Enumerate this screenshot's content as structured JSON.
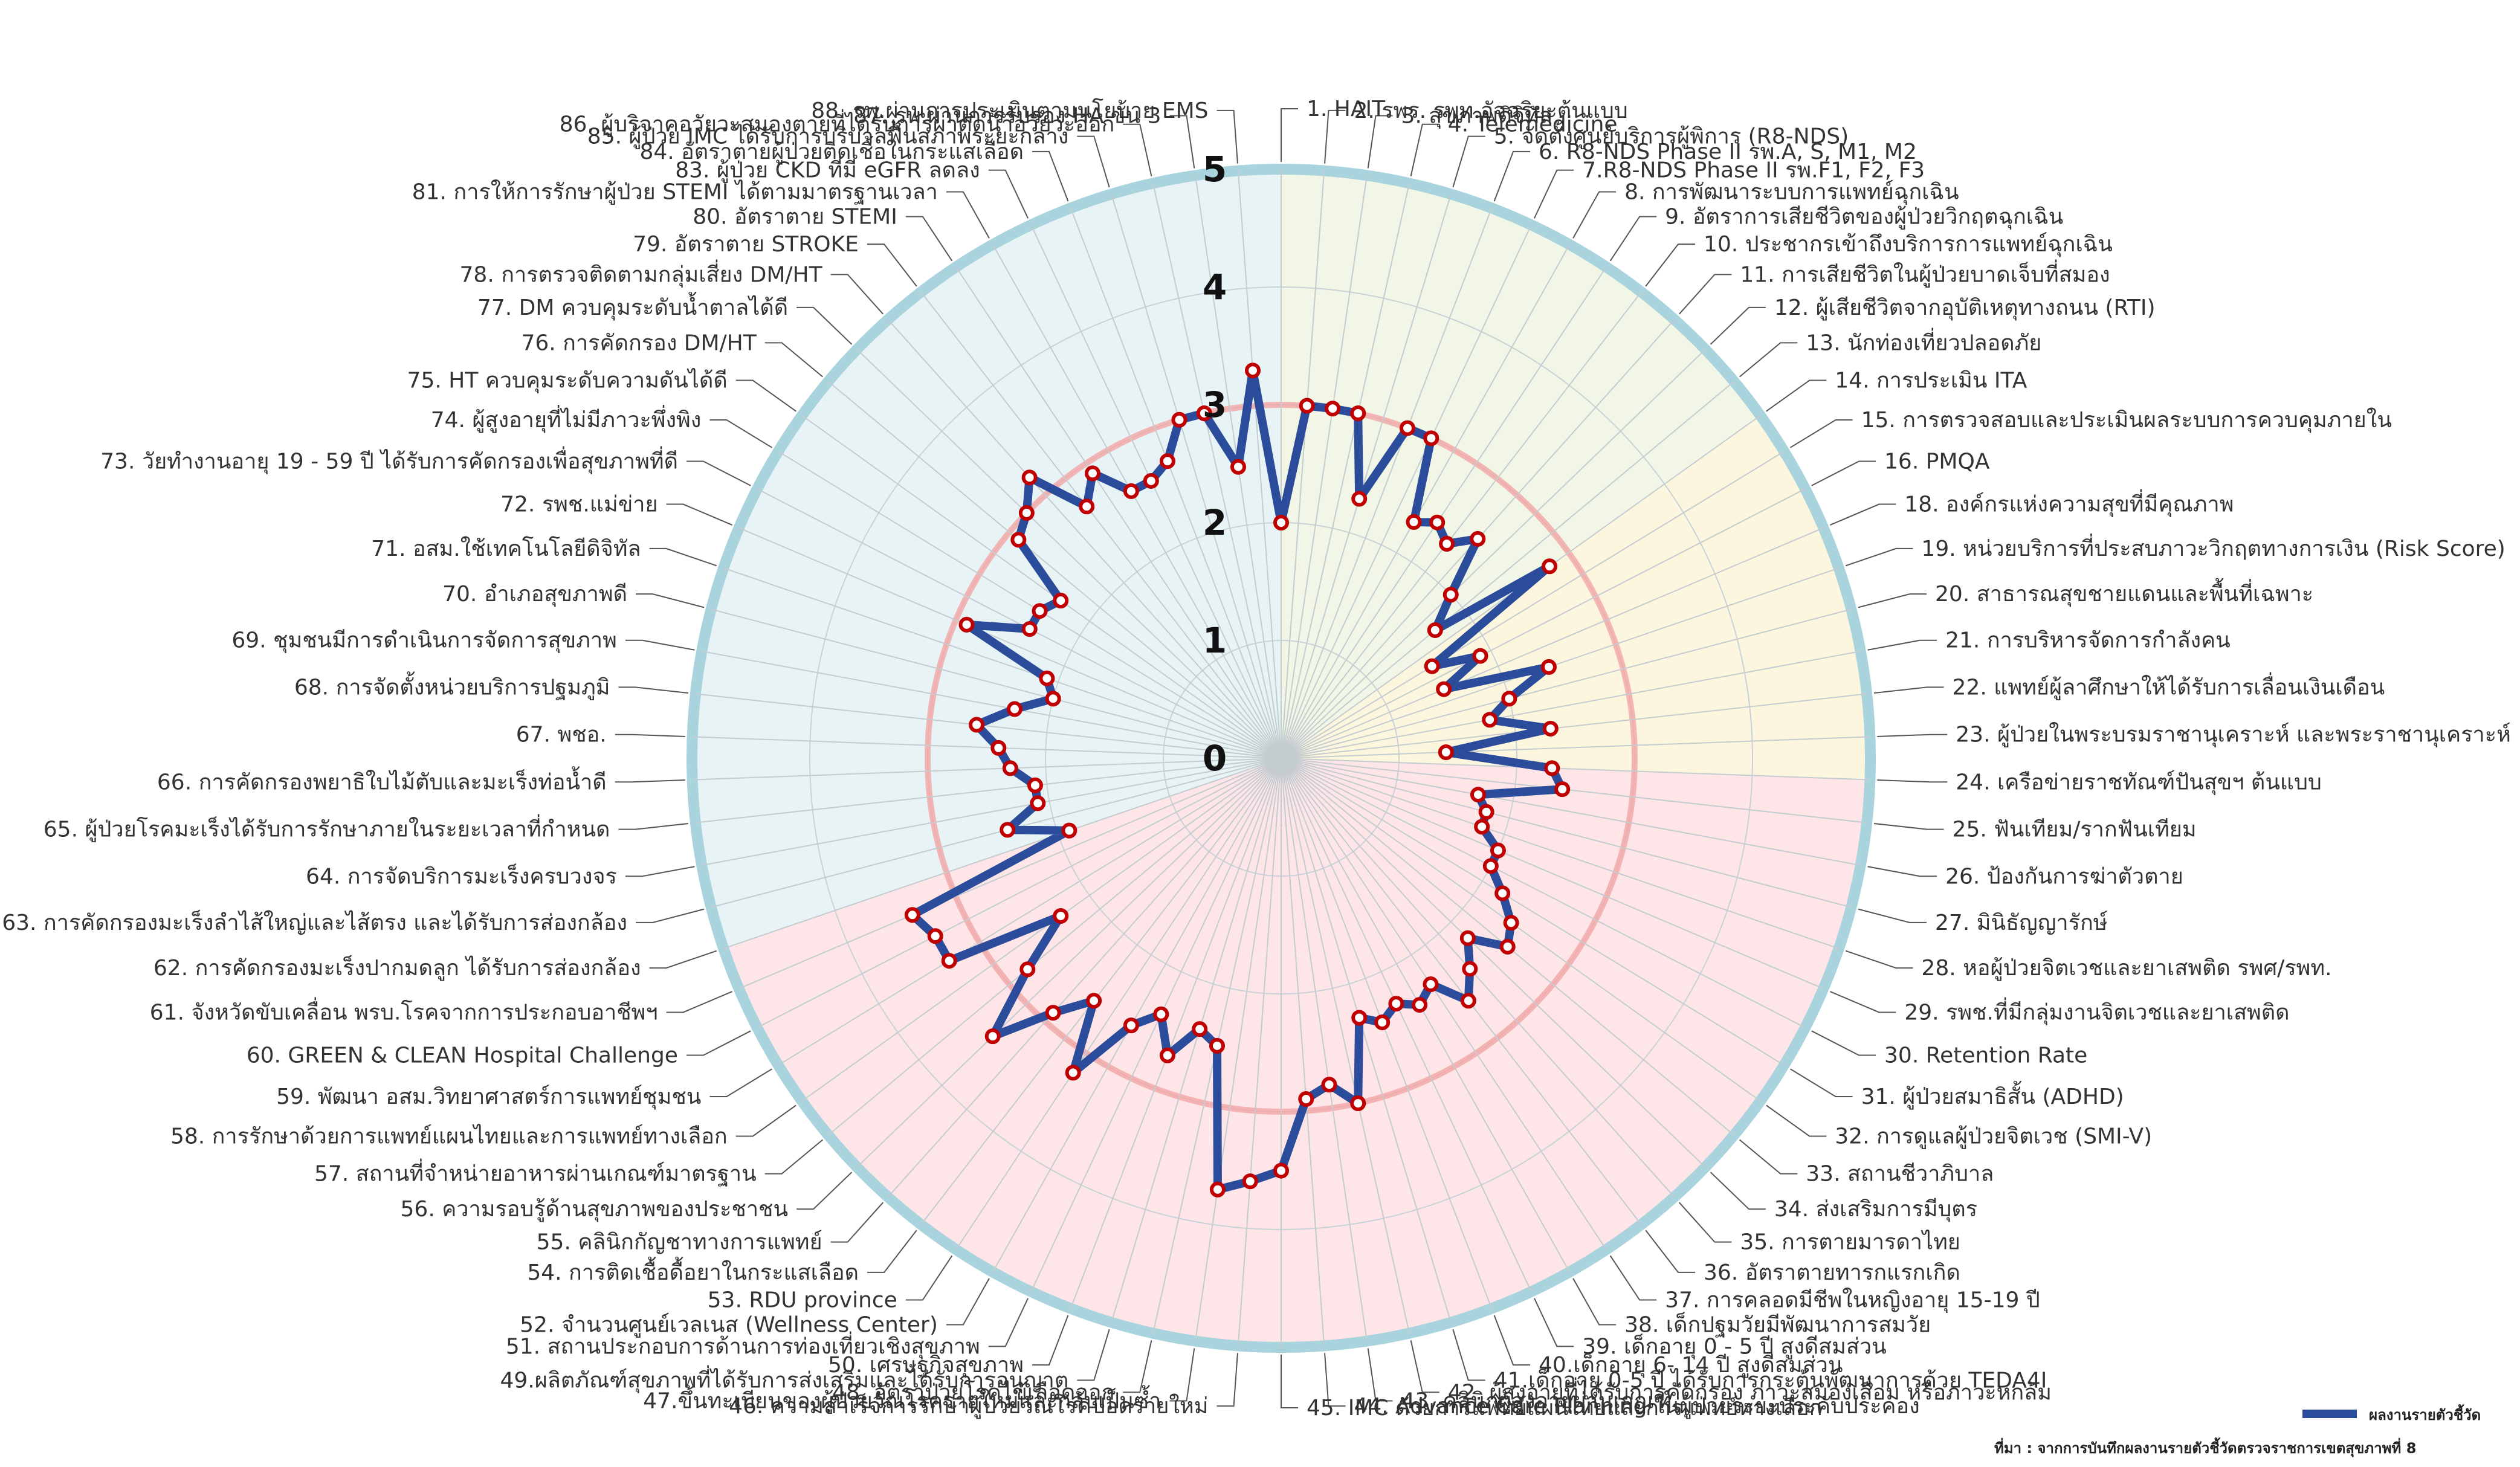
{
  "chart_data": {
    "type": "radar",
    "title": "",
    "rmax": 5,
    "r_ticks": [
      "0",
      "1",
      "2",
      "3",
      "4",
      "5"
    ],
    "reference_level": 3,
    "categories": [
      "1. HAIT",
      "2. รพร. รพท.อัจฉริยะต้นแบบ",
      "3. สุขภาพดิจิทัล",
      "4. Telemedicine",
      "5. จัดตั้งศูนย์บริการผู้พิการ (R8-NDS)",
      "6. R8-NDS Phase II รพ.A, S, M1, M2",
      "7.R8-NDS Phase II รพ.F1, F2, F3",
      "8. การพัฒนาระบบการแพทย์ฉุกเฉิน",
      "9. อัตราการเสียชีวิตของผู้ป่วยวิกฤตฉุกเฉิน",
      "10. ประชากรเข้าถึงบริการการแพทย์ฉุกเฉิน",
      "11. การเสียชีวิตในผู้ป่วยบาดเจ็บที่สมอง",
      "12. ผู้เสียชีวิตจากอุบัติเหตุทางถนน (RTI)",
      "13. นักท่องเที่ยวปลอดภัย",
      "14. การประเมิน ITA",
      "15. การตรวจสอบและประเมินผลระบบการควบคุมภายใน",
      "16. PMQA",
      "18. องค์กรแห่งความสุขที่มีคุณภาพ",
      "19. หน่วยบริการที่ประสบภาวะวิกฤตทางการเงิน (Risk Score)",
      "20. สาธารณสุขชายแดนและพื้นที่เฉพาะ",
      "21. การบริหารจัดการกำลังคน",
      "22. แพทย์ผู้ลาศึกษาให้ได้รับการเลื่อนเงินเดือน",
      "23. ผู้ป่วยในพระบรมราชานุเคราะห์ และพระราชานุเคราะห์",
      "24. เครือข่ายราชทัณฑ์ปันสุขฯ ต้นแบบ",
      "25. ฟันเทียม/รากฟันเทียม",
      "26. ป้องกันการฆ่าตัวตาย",
      "27. มินิธัญญารักษ์",
      "28. หอผู้ป่วยจิตเวชและยาเสพติด รพศ/รพท.",
      "29. รพช.ที่มีกลุ่มงานจิตเวชและยาเสพติด",
      "30. Retention Rate",
      "31. ผู้ป่วยสมาธิสั้น (ADHD)",
      "32. การดูแลผู้ป่วยจิตเวช (SMI-V)",
      "33. สถานชีวาภิบาล",
      "34. ส่งเสริมการมีบุตร",
      "35. การตายมารดาไทย",
      "36. อัตราตายทารกแรกเกิด",
      "37. การคลอดมีชีพในหญิงอายุ 15-19 ปี",
      "38. เด็กปฐมวัยมีพัฒนาการสมวัย",
      "39. เด็กอายุ 0 - 5 ปี สูงดีสมส่วน",
      "40.เด็กอายุ 6- 14 ปี สูงดีสมส่วน",
      "41.เด็กอายุ 0-5 ปี ได้รับการกระตุ้นพัฒนาการด้วย TEDA4I",
      "42. ผู้สูงอายุที่ได้รับการคัดกรอง ภาวะสมองเสื่อม หรือภาวะหกล้ม",
      "43. คลินิกผู้สูงอายุผ่านเกณฑ์",
      "44. Advance Care Planning ในผู้ป่วยระยะประคับประคอง",
      "45. IMC ด้วยการแพทย์แผนไทยและการแพทย์ทางเลือก",
      "46. ความสำเร็จการรักษาผู้ป่วยวัณโรคปอดรายใหม่",
      "47.ขึ้นทะเบียนของผู้ป่วยวัณโรครายใหม่และกลับเป็นซ้ำ",
      "48. อัตราป่วยโรคไข้เลือดออก",
      "49.ผลิตภัณฑ์สุขภาพที่ได้รับการส่งเสริมและได้รับการอนุญาต",
      "50. เศรษฐกิจสุขภาพ",
      "51. สถานประกอบการด้านการท่องเที่ยวเชิงสุขภาพ",
      "52. จำนวนศูนย์เวลเนส (Wellness Center)",
      "53. RDU province",
      "54. การติดเชื้อดื้อยาในกระแสเลือด",
      "55. คลินิกกัญชาทางการแพทย์",
      "56. ความรอบรู้ด้านสุขภาพของประชาชน",
      "57. สถานที่จำหน่ายอาหารผ่านเกณฑ์มาตรฐาน",
      "58. การรักษาด้วยการแพทย์แผนไทยและการแพทย์ทางเลือก",
      "59. พัฒนา อสม.วิทยาศาสตร์การแพทย์ชุมชน",
      "60. GREEN & CLEAN Hospital Challenge",
      "61. จังหวัดขับเคลื่อน พรบ.โรคจากการประกอบอาชีพฯ",
      "62. การคัดกรองมะเร็งปากมดลูก ได้รับการส่องกล้อง",
      "63. การคัดกรองมะเร็งลำไส้ใหญ่และไส้ตรง และได้รับการส่องกล้อง",
      "64. การจัดบริการมะเร็งครบวงจร",
      "65. ผู้ป่วยโรคมะเร็งได้รับการรักษาภายในระยะเวลาที่กำหนด",
      "66. การคัดกรองพยาธิใบไม้ตับและมะเร็งท่อน้ำดี",
      "67. พชอ.",
      "68. การจัดตั้งหน่วยบริการปฐมภูมิ",
      "69. ชุมชนมีการดำเนินการจัดการสุขภาพ",
      "70. อำเภอสุขภาพดี",
      "71. อสม.ใช้เทคโนโลยีดิจิทัล",
      "72. รพช.แม่ข่าย",
      "73. วัยทำงานอายุ 19 - 59 ปี ได้รับการคัดกรองเพื่อสุขภาพที่ดี",
      "74. ผู้สูงอายุที่ไม่มีภาวะพึ่งพิง",
      "75. HT ควบคุมระดับความดันได้ดี",
      "76. การคัดกรอง DM/HT",
      "77. DM ควบคุมระดับน้ำตาลได้ดี",
      "78. การตรวจติดตามกลุ่มเสี่ยง DM/HT",
      "79. อัตราตาย STROKE",
      "80. อัตราตาย STEMI",
      "81. การให้การรักษาผู้ป่วย STEMI ได้ตามมาตรฐานเวลา",
      "83. ผู้ป่วย CKD ที่มี eGFR ลดลง",
      "84. อัตราตายผู้ป่วยติดเชื้อในกระแสเลือด",
      "85. ผู้ป่วย IMC ได้รับการบริบาลฟื้นสภาพระยะกลาง",
      "86. ผู้บริจาคอวัยวะสมองตายที่ได้รับการผ่าตัดนำอวัยวะออก",
      "87. รพ.ผ่านการรับรอง HA ขั้น 3",
      "88. รพ.ผ่านการประเมินตามนโยบาย EMS"
    ],
    "series": [
      {
        "name": "ผลงานรายตัวชี้วัด",
        "color": "#2b4c9b",
        "point_color": "#c00000",
        "values": [
          2.0,
          3.0,
          3.0,
          3.0,
          2.3,
          3.0,
          3.0,
          2.3,
          2.4,
          2.3,
          2.5,
          2.0,
          1.7,
          2.8,
          1.5,
          1.9,
          1.5,
          2.4,
          2.0,
          1.8,
          2.3,
          1.4,
          2.3,
          2.4,
          1.7,
          1.8,
          1.8,
          2.0,
          2.0,
          2.2,
          2.4,
          2.5,
          2.2,
          2.4,
          2.6,
          2.3,
          2.4,
          2.3,
          2.4,
          2.3,
          3.0,
          2.8,
          2.9,
          3.5,
          3.6,
          3.7,
          2.5,
          2.4,
          2.7,
          2.4,
          2.6,
          3.2,
          2.6,
          2.9,
          3.4,
          2.8,
          2.3,
          3.3,
          3.3,
          3.4,
          1.9,
          2.4,
          2.1,
          2.1,
          2.3,
          2.4,
          2.6,
          2.3,
          2.0,
          2.1,
          2.9,
          2.4,
          2.4,
          2.3,
          2.9,
          3.0,
          3.2,
          2.7,
          2.9,
          2.6,
          2.6,
          2.7,
          3.0,
          3.0,
          2.5,
          3.3
        ]
      }
    ],
    "sectors": [
      {
        "start": 0,
        "end": 13,
        "color": "#eef5e2"
      },
      {
        "start": 13,
        "end": 22,
        "color": "#fbf4d8"
      },
      {
        "start": 22,
        "end": 52,
        "color": "#fde1e4"
      },
      {
        "start": 52,
        "end": 60,
        "color": "#fde1e4"
      },
      {
        "start": 60,
        "end": 86,
        "color": "#e4f1f5"
      }
    ],
    "legend": {
      "position": "bottom-right",
      "label": "ผลงานรายตัวชี้วัด"
    },
    "source_note": "ที่มา : จากการบันทึกผลงานรายตัวชี้วัดตรวจราชการเขตสุขภาพที่ 8"
  }
}
